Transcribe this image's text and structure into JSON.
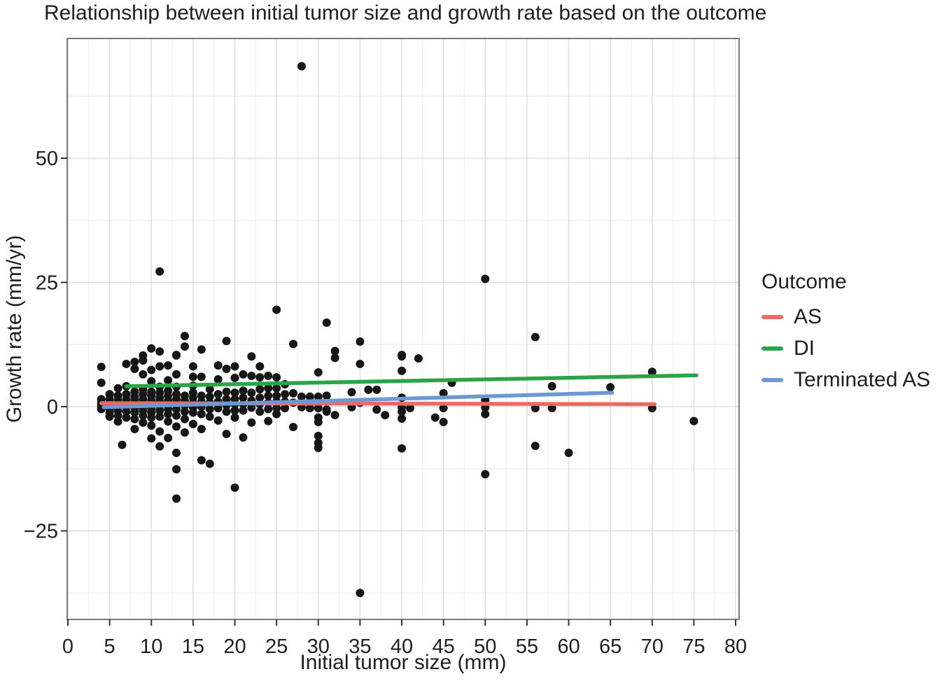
{
  "title": "Relationship between initial tumor size and growth rate based on the outcome",
  "chart_data": {
    "type": "scatter",
    "title": "Relationship between initial tumor size and growth rate based on the outcome",
    "xlabel": "Initial tumor size (mm)",
    "ylabel": "Growth rate (mm/yr)",
    "xlim": [
      0,
      80
    ],
    "ylim": [
      -43,
      74
    ],
    "x_ticks": [
      0,
      5,
      10,
      15,
      20,
      25,
      30,
      35,
      40,
      45,
      50,
      55,
      60,
      65,
      70,
      75,
      80
    ],
    "y_ticks": [
      -25,
      0,
      25,
      50
    ],
    "y_tick_labels": [
      "−25",
      "0",
      "25",
      "50"
    ],
    "grid": "major and minor gridlines, light gray, white panel, gray border",
    "legend_position": "right",
    "point_color": "#161616",
    "panel_border_color": "#7b7b7b",
    "major_grid_color": "#dedede",
    "minor_grid_color": "#efefef",
    "points": [
      [
        4,
        8
      ],
      [
        4,
        4.8
      ],
      [
        4,
        1.5
      ],
      [
        4,
        0.8
      ],
      [
        4,
        0.2
      ],
      [
        4,
        -0.5
      ],
      [
        5,
        2.5
      ],
      [
        5,
        1.5
      ],
      [
        5,
        0.8
      ],
      [
        5,
        0.2
      ],
      [
        5,
        -0.4
      ],
      [
        5,
        -1.2
      ],
      [
        5,
        -2
      ],
      [
        6,
        3.7
      ],
      [
        6,
        2.2
      ],
      [
        6,
        1.2
      ],
      [
        6,
        0.5
      ],
      [
        6,
        0
      ],
      [
        6,
        -0.8
      ],
      [
        6,
        -1.8
      ],
      [
        6,
        -3
      ],
      [
        6.5,
        -7.7
      ],
      [
        7,
        8.6
      ],
      [
        7,
        4.1
      ],
      [
        7,
        2.5
      ],
      [
        7,
        1.5
      ],
      [
        7,
        0.8
      ],
      [
        7,
        0
      ],
      [
        7,
        -1
      ],
      [
        7,
        -2.2
      ],
      [
        8,
        9
      ],
      [
        8,
        7.6
      ],
      [
        8,
        3
      ],
      [
        8,
        2
      ],
      [
        8,
        1.2
      ],
      [
        8,
        0.5
      ],
      [
        8,
        -0.3
      ],
      [
        8,
        -1.2
      ],
      [
        8,
        -2.5
      ],
      [
        8,
        -4.5
      ],
      [
        9,
        10.3
      ],
      [
        9,
        9.3
      ],
      [
        9,
        6.5
      ],
      [
        9,
        3.5
      ],
      [
        9,
        2.5
      ],
      [
        9,
        1.5
      ],
      [
        9,
        0.8
      ],
      [
        9,
        0
      ],
      [
        9,
        -0.8
      ],
      [
        9,
        -1.8
      ],
      [
        9,
        -3.2
      ],
      [
        10,
        11.7
      ],
      [
        10,
        7.4
      ],
      [
        10,
        5.1
      ],
      [
        10,
        3
      ],
      [
        10,
        2.2
      ],
      [
        10,
        1.2
      ],
      [
        10,
        0.5
      ],
      [
        10,
        -0.3
      ],
      [
        10,
        -1.2
      ],
      [
        10,
        -2.2
      ],
      [
        10,
        -3.8
      ],
      [
        10,
        -6.4
      ],
      [
        11,
        27.2
      ],
      [
        11,
        11.1
      ],
      [
        11,
        8.1
      ],
      [
        11,
        4
      ],
      [
        11,
        2.8
      ],
      [
        11,
        1.8
      ],
      [
        11,
        1
      ],
      [
        11,
        0.2
      ],
      [
        11,
        -0.8
      ],
      [
        11,
        -2
      ],
      [
        11,
        -5
      ],
      [
        11,
        -8
      ],
      [
        12,
        8.3
      ],
      [
        12,
        5.3
      ],
      [
        12,
        3.2
      ],
      [
        12,
        2.2
      ],
      [
        12,
        1.2
      ],
      [
        12,
        0.3
      ],
      [
        12,
        -0.5
      ],
      [
        12,
        -1.5
      ],
      [
        12,
        -3
      ],
      [
        12,
        -6.3
      ],
      [
        13,
        10.4
      ],
      [
        13,
        10.3
      ],
      [
        13,
        6.5
      ],
      [
        13,
        4
      ],
      [
        13,
        2.5
      ],
      [
        13,
        1.5
      ],
      [
        13,
        0.5
      ],
      [
        13,
        -0.5
      ],
      [
        13,
        -1.8
      ],
      [
        13,
        -4
      ],
      [
        13,
        -9.3
      ],
      [
        13,
        -12.6
      ],
      [
        13,
        -18.5
      ],
      [
        14,
        14.2
      ],
      [
        14,
        12.1
      ],
      [
        14,
        2.2
      ],
      [
        14,
        1.2
      ],
      [
        14,
        0.2
      ],
      [
        14,
        -1
      ],
      [
        14,
        -2.5
      ],
      [
        14,
        -5.2
      ],
      [
        15,
        8.1
      ],
      [
        15,
        6
      ],
      [
        15,
        4.2
      ],
      [
        15,
        2.8
      ],
      [
        15,
        1.8
      ],
      [
        15,
        0.8
      ],
      [
        15,
        -0.2
      ],
      [
        15,
        -1.2
      ],
      [
        15,
        -3.5
      ],
      [
        16,
        11.5
      ],
      [
        16,
        6
      ],
      [
        16,
        2.2
      ],
      [
        16,
        1
      ],
      [
        16,
        0
      ],
      [
        16,
        -1.5
      ],
      [
        16,
        -4.5
      ],
      [
        16,
        -10.8
      ],
      [
        17,
        3.5
      ],
      [
        17,
        2
      ],
      [
        17,
        0.8
      ],
      [
        17,
        -0.5
      ],
      [
        17,
        -2
      ],
      [
        17,
        -11.5
      ],
      [
        18,
        8.3
      ],
      [
        18,
        5.5
      ],
      [
        18,
        2.5
      ],
      [
        18,
        1
      ],
      [
        18,
        -0.3
      ],
      [
        18,
        -2.8
      ],
      [
        19,
        13.2
      ],
      [
        19,
        7.6
      ],
      [
        19,
        3
      ],
      [
        19,
        1.5
      ],
      [
        19,
        0.3
      ],
      [
        19,
        -1
      ],
      [
        19,
        -5.5
      ],
      [
        20,
        8.1
      ],
      [
        20,
        5.8
      ],
      [
        20,
        2.8
      ],
      [
        20,
        1.5
      ],
      [
        20,
        0.5
      ],
      [
        20,
        -0.8
      ],
      [
        20,
        -2.2
      ],
      [
        20,
        -16.3
      ],
      [
        21,
        6.5
      ],
      [
        21,
        3.2
      ],
      [
        21,
        1.8
      ],
      [
        21,
        0.5
      ],
      [
        21,
        -0.8
      ],
      [
        21,
        -6.2
      ],
      [
        22,
        10.1
      ],
      [
        22,
        6.2
      ],
      [
        22,
        2.8
      ],
      [
        22,
        1.2
      ],
      [
        22,
        -0.2
      ],
      [
        22,
        -3.2
      ],
      [
        23,
        8.1
      ],
      [
        23,
        5.9
      ],
      [
        23,
        3.5
      ],
      [
        23,
        1.8
      ],
      [
        23,
        0.5
      ],
      [
        23,
        -1
      ],
      [
        24,
        6.2
      ],
      [
        24,
        3.7
      ],
      [
        24,
        2.2
      ],
      [
        24,
        0.8
      ],
      [
        24,
        -0.5
      ],
      [
        24,
        -2.9
      ],
      [
        25,
        19.5
      ],
      [
        25,
        5.9
      ],
      [
        25,
        3.7
      ],
      [
        25,
        2.2
      ],
      [
        25,
        1
      ],
      [
        25,
        -0.3
      ],
      [
        25,
        -1.5
      ],
      [
        26,
        4.5
      ],
      [
        26,
        2.5
      ],
      [
        26,
        1
      ],
      [
        26,
        -0.3
      ],
      [
        27,
        12.6
      ],
      [
        27,
        2.7
      ],
      [
        27,
        0.8
      ],
      [
        27,
        -4.1
      ],
      [
        28,
        68.5
      ],
      [
        28,
        2
      ],
      [
        28,
        -0.1
      ],
      [
        29,
        2
      ],
      [
        29,
        -0.3
      ],
      [
        30,
        6.9
      ],
      [
        30,
        2
      ],
      [
        30,
        -0.3
      ],
      [
        30,
        -2.2
      ],
      [
        30,
        -3.1
      ],
      [
        30,
        -5.9
      ],
      [
        30,
        -7.3
      ],
      [
        30,
        -8.3
      ],
      [
        31,
        16.9
      ],
      [
        31,
        2.2
      ],
      [
        31,
        -0.6
      ],
      [
        31,
        -1
      ],
      [
        32,
        11.2
      ],
      [
        32,
        9.8
      ],
      [
        32,
        -1.7
      ],
      [
        34,
        2.9
      ],
      [
        34,
        -0.1
      ],
      [
        35,
        13.1
      ],
      [
        35,
        8.6
      ],
      [
        35,
        0.8
      ],
      [
        35,
        -37.5
      ],
      [
        36,
        3.4
      ],
      [
        37,
        3.4
      ],
      [
        37,
        -0.6
      ],
      [
        38,
        -1.7
      ],
      [
        40,
        10.4
      ],
      [
        40,
        10.1
      ],
      [
        40,
        7.2
      ],
      [
        40,
        1.8
      ],
      [
        40,
        -0.1
      ],
      [
        40,
        -1
      ],
      [
        40,
        -2.4
      ],
      [
        40,
        -8.4
      ],
      [
        41,
        -0.3
      ],
      [
        42,
        9.7
      ],
      [
        44,
        -2.2
      ],
      [
        45,
        2.7
      ],
      [
        45,
        -0.3
      ],
      [
        45,
        -3.1
      ],
      [
        46,
        4.8
      ],
      [
        50,
        25.7
      ],
      [
        50,
        1.3
      ],
      [
        50,
        -0.2
      ],
      [
        50,
        -1.5
      ],
      [
        50,
        -13.6
      ],
      [
        56,
        14
      ],
      [
        56,
        -0.3
      ],
      [
        56,
        -7.9
      ],
      [
        58,
        4.1
      ],
      [
        58,
        -0.3
      ],
      [
        60,
        -9.3
      ],
      [
        65,
        3.9
      ],
      [
        70,
        7
      ],
      [
        70,
        -0.3
      ],
      [
        75,
        -2.9
      ]
    ],
    "trend_lines": [
      {
        "name": "AS",
        "color": "#ed6a64",
        "x1": 4,
        "y1": 0.7,
        "x2": 70.3,
        "y2": 0.5
      },
      {
        "name": "DI",
        "color": "#2ba348",
        "x1": 7,
        "y1": 4.1,
        "x2": 75.3,
        "y2": 6.3
      },
      {
        "name": "Terminated AS",
        "color": "#6d99d2",
        "x1": 4.3,
        "y1": -0.1,
        "x2": 65.2,
        "y2": 2.8
      }
    ],
    "legend": {
      "title": "Outcome",
      "items": [
        {
          "label": "AS",
          "color": "#ed6a64"
        },
        {
          "label": "DI",
          "color": "#2ba348"
        },
        {
          "label": "Terminated AS",
          "color": "#6d99d2"
        }
      ]
    }
  }
}
